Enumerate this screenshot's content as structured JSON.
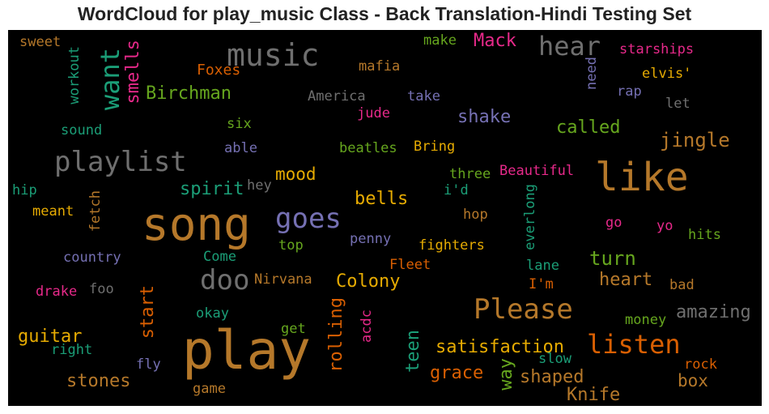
{
  "title": "WordCloud for play_music Class - Back Translation-Hindi Testing Set",
  "chart_data": {
    "type": "wordcloud",
    "background": "#000000",
    "words": [
      {
        "text": "play",
        "color": "#b5782a",
        "size": 66,
        "orientation": "horizontal"
      },
      {
        "text": "song",
        "color": "#b5782a",
        "size": 56,
        "orientation": "horizontal"
      },
      {
        "text": "like",
        "color": "#b5782a",
        "size": 48,
        "orientation": "horizontal"
      },
      {
        "text": "music",
        "color": "#6f6f6f",
        "size": 38,
        "orientation": "horizontal"
      },
      {
        "text": "playlist",
        "color": "#6f6f6f",
        "size": 34,
        "orientation": "horizontal"
      },
      {
        "text": "goes",
        "color": "#7570b3",
        "size": 34,
        "orientation": "horizontal"
      },
      {
        "text": "Please",
        "color": "#b5782a",
        "size": 34,
        "orientation": "horizontal"
      },
      {
        "text": "doo",
        "color": "#6f6f6f",
        "size": 34,
        "orientation": "horizontal"
      },
      {
        "text": "hear",
        "color": "#6f6f6f",
        "size": 32,
        "orientation": "horizontal"
      },
      {
        "text": "listen",
        "color": "#d95f02",
        "size": 32,
        "orientation": "horizontal"
      },
      {
        "text": "want",
        "color": "#1b9e77",
        "size": 32,
        "orientation": "vertical"
      },
      {
        "text": "jingle",
        "color": "#b5782a",
        "size": 24,
        "orientation": "horizontal"
      },
      {
        "text": "turn",
        "color": "#66a61e",
        "size": 24,
        "orientation": "horizontal"
      },
      {
        "text": "amazing",
        "color": "#6f6f6f",
        "size": 22,
        "orientation": "horizontal"
      },
      {
        "text": "satisfaction",
        "color": "#e6ab02",
        "size": 22,
        "orientation": "horizontal"
      },
      {
        "text": "Birchman",
        "color": "#66a61e",
        "size": 22,
        "orientation": "horizontal"
      },
      {
        "text": "called",
        "color": "#66a61e",
        "size": 22,
        "orientation": "horizontal"
      },
      {
        "text": "shake",
        "color": "#7570b3",
        "size": 22,
        "orientation": "horizontal"
      },
      {
        "text": "Colony",
        "color": "#e6ab02",
        "size": 22,
        "orientation": "horizontal"
      },
      {
        "text": "stones",
        "color": "#b5782a",
        "size": 22,
        "orientation": "horizontal"
      },
      {
        "text": "shaped",
        "color": "#b5782a",
        "size": 22,
        "orientation": "horizontal"
      },
      {
        "text": "heart",
        "color": "#b5782a",
        "size": 22,
        "orientation": "horizontal"
      },
      {
        "text": "grace",
        "color": "#d95f02",
        "size": 22,
        "orientation": "horizontal"
      },
      {
        "text": "Knife",
        "color": "#b5782a",
        "size": 22,
        "orientation": "horizontal"
      },
      {
        "text": "bells",
        "color": "#e6ab02",
        "size": 22,
        "orientation": "horizontal"
      },
      {
        "text": "guitar",
        "color": "#e6ab02",
        "size": 22,
        "orientation": "horizontal"
      },
      {
        "text": "spirit",
        "color": "#1b9e77",
        "size": 22,
        "orientation": "horizontal"
      },
      {
        "text": "Mack",
        "color": "#e7298a",
        "size": 22,
        "orientation": "horizontal"
      },
      {
        "text": "mood",
        "color": "#e6ab02",
        "size": 21,
        "orientation": "horizontal"
      },
      {
        "text": "box",
        "color": "#b5782a",
        "size": 21,
        "orientation": "horizontal"
      },
      {
        "text": "smells",
        "color": "#e7298a",
        "size": 22,
        "orientation": "vertical"
      },
      {
        "text": "start",
        "color": "#d95f02",
        "size": 22,
        "orientation": "vertical"
      },
      {
        "text": "rolling",
        "color": "#d95f02",
        "size": 22,
        "orientation": "vertical"
      },
      {
        "text": "teen",
        "color": "#1b9e77",
        "size": 22,
        "orientation": "vertical"
      },
      {
        "text": "way",
        "color": "#66a61e",
        "size": 22,
        "orientation": "vertical"
      },
      {
        "text": "Foxes",
        "color": "#d95f02",
        "size": 18,
        "orientation": "horizontal"
      },
      {
        "text": "mafia",
        "color": "#b5782a",
        "size": 17,
        "orientation": "horizontal"
      },
      {
        "text": "starships",
        "color": "#e7298a",
        "size": 17,
        "orientation": "horizontal"
      },
      {
        "text": "elvis'",
        "color": "#e6ab02",
        "size": 17,
        "orientation": "horizontal"
      },
      {
        "text": "America",
        "color": "#6f6f6f",
        "size": 17,
        "orientation": "horizontal"
      },
      {
        "text": "take",
        "color": "#7570b3",
        "size": 17,
        "orientation": "horizontal"
      },
      {
        "text": "rap",
        "color": "#7570b3",
        "size": 17,
        "orientation": "horizontal"
      },
      {
        "text": "let",
        "color": "#6f6f6f",
        "size": 17,
        "orientation": "horizontal"
      },
      {
        "text": "sweet",
        "color": "#b5782a",
        "size": 17,
        "orientation": "horizontal"
      },
      {
        "text": "make",
        "color": "#66a61e",
        "size": 17,
        "orientation": "horizontal"
      },
      {
        "text": "jude",
        "color": "#e7298a",
        "size": 17,
        "orientation": "horizontal"
      },
      {
        "text": "sound",
        "color": "#1b9e77",
        "size": 17,
        "orientation": "horizontal"
      },
      {
        "text": "six",
        "color": "#66a61e",
        "size": 17,
        "orientation": "horizontal"
      },
      {
        "text": "able",
        "color": "#7570b3",
        "size": 17,
        "orientation": "horizontal"
      },
      {
        "text": "beatles",
        "color": "#66a61e",
        "size": 17,
        "orientation": "horizontal"
      },
      {
        "text": "Bring",
        "color": "#e6ab02",
        "size": 17,
        "orientation": "horizontal"
      },
      {
        "text": "three",
        "color": "#66a61e",
        "size": 17,
        "orientation": "horizontal"
      },
      {
        "text": "Beautiful",
        "color": "#e7298a",
        "size": 17,
        "orientation": "horizontal"
      },
      {
        "text": "hip",
        "color": "#1b9e77",
        "size": 17,
        "orientation": "horizontal"
      },
      {
        "text": "hey",
        "color": "#6f6f6f",
        "size": 17,
        "orientation": "horizontal"
      },
      {
        "text": "i'd",
        "color": "#1b9e77",
        "size": 17,
        "orientation": "horizontal"
      },
      {
        "text": "meant",
        "color": "#e6ab02",
        "size": 17,
        "orientation": "horizontal"
      },
      {
        "text": "hop",
        "color": "#b5782a",
        "size": 17,
        "orientation": "horizontal"
      },
      {
        "text": "go",
        "color": "#e7298a",
        "size": 17,
        "orientation": "horizontal"
      },
      {
        "text": "yo",
        "color": "#e7298a",
        "size": 17,
        "orientation": "horizontal"
      },
      {
        "text": "hits",
        "color": "#66a61e",
        "size": 17,
        "orientation": "horizontal"
      },
      {
        "text": "penny",
        "color": "#7570b3",
        "size": 17,
        "orientation": "horizontal"
      },
      {
        "text": "top",
        "color": "#66a61e",
        "size": 17,
        "orientation": "horizontal"
      },
      {
        "text": "fighters",
        "color": "#e6ab02",
        "size": 17,
        "orientation": "horizontal"
      },
      {
        "text": "country",
        "color": "#7570b3",
        "size": 17,
        "orientation": "horizontal"
      },
      {
        "text": "Come",
        "color": "#1b9e77",
        "size": 17,
        "orientation": "horizontal"
      },
      {
        "text": "Fleet",
        "color": "#d95f02",
        "size": 17,
        "orientation": "horizontal"
      },
      {
        "text": "lane",
        "color": "#1b9e77",
        "size": 17,
        "orientation": "horizontal"
      },
      {
        "text": "Nirvana",
        "color": "#b5782a",
        "size": 17,
        "orientation": "horizontal"
      },
      {
        "text": "I'm",
        "color": "#d95f02",
        "size": 17,
        "orientation": "horizontal"
      },
      {
        "text": "drake",
        "color": "#e7298a",
        "size": 17,
        "orientation": "horizontal"
      },
      {
        "text": "foo",
        "color": "#6f6f6f",
        "size": 17,
        "orientation": "horizontal"
      },
      {
        "text": "bad",
        "color": "#b5782a",
        "size": 17,
        "orientation": "horizontal"
      },
      {
        "text": "okay",
        "color": "#1b9e77",
        "size": 17,
        "orientation": "horizontal"
      },
      {
        "text": "money",
        "color": "#66a61e",
        "size": 17,
        "orientation": "horizontal"
      },
      {
        "text": "get",
        "color": "#66a61e",
        "size": 17,
        "orientation": "horizontal"
      },
      {
        "text": "right",
        "color": "#1b9e77",
        "size": 17,
        "orientation": "horizontal"
      },
      {
        "text": "fly",
        "color": "#7570b3",
        "size": 17,
        "orientation": "horizontal"
      },
      {
        "text": "slow",
        "color": "#1b9e77",
        "size": 17,
        "orientation": "horizontal"
      },
      {
        "text": "rock",
        "color": "#d95f02",
        "size": 17,
        "orientation": "horizontal"
      },
      {
        "text": "game",
        "color": "#b5782a",
        "size": 17,
        "orientation": "horizontal"
      },
      {
        "text": "workout",
        "color": "#1b9e77",
        "size": 17,
        "orientation": "vertical"
      },
      {
        "text": "need",
        "color": "#7570b3",
        "size": 17,
        "orientation": "vertical"
      },
      {
        "text": "fetch",
        "color": "#b5782a",
        "size": 17,
        "orientation": "vertical"
      },
      {
        "text": "everlong",
        "color": "#1b9e77",
        "size": 17,
        "orientation": "vertical"
      },
      {
        "text": "acdc",
        "color": "#e7298a",
        "size": 17,
        "orientation": "vertical"
      }
    ]
  }
}
